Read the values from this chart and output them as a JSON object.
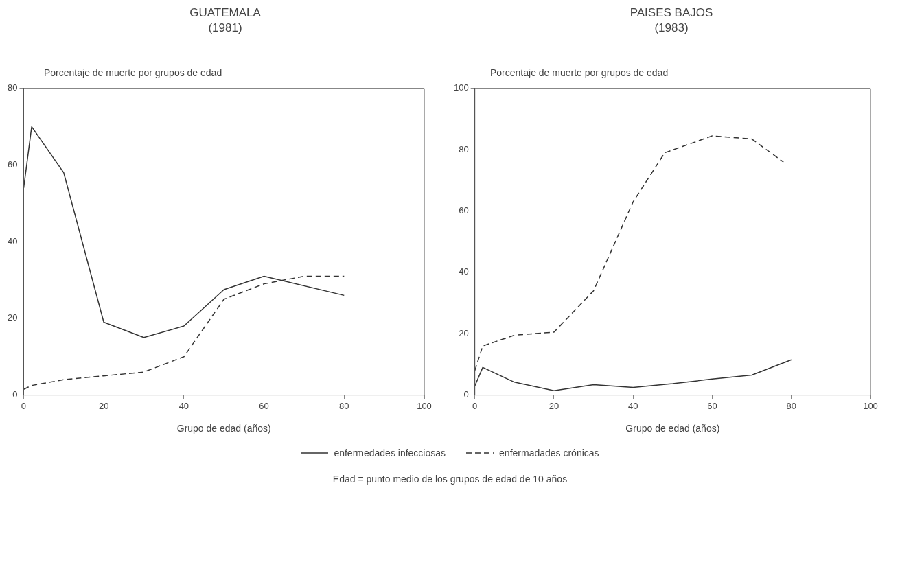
{
  "chart_data": [
    {
      "type": "line",
      "title": "GUATEMALA",
      "subtitle": "(1981)",
      "ylabel": "Porcentaje de muerte por grupos de edad",
      "xlabel": "Grupo de edad (años)",
      "xlim": [
        0,
        100
      ],
      "xticks": [
        0,
        20,
        40,
        60,
        80,
        100
      ],
      "ylim": [
        0,
        80
      ],
      "yticks": [
        0,
        20,
        40,
        60,
        80
      ],
      "grid": false,
      "legend": "bottom",
      "marker": "none",
      "annotations": [
        "Edad = punto medio de los grupos de edad de 10 años"
      ],
      "series": [
        {
          "name": "enfermedades infecciosas",
          "color": "#333333",
          "line_style": "solid",
          "x": [
            0,
            2,
            10,
            20,
            30,
            40,
            50,
            60,
            80
          ],
          "values": [
            54,
            70,
            58,
            19,
            15,
            18,
            27.5,
            31,
            26
          ]
        },
        {
          "name": "enfermadades crónicas",
          "color": "#333333",
          "line_style": "dashed",
          "x": [
            0,
            2,
            10,
            20,
            30,
            40,
            50,
            60,
            70,
            80
          ],
          "values": [
            1.5,
            2.5,
            4,
            5,
            6,
            10,
            25,
            29,
            31,
            31
          ]
        }
      ]
    },
    {
      "type": "line",
      "title": "PAISES BAJOS",
      "subtitle": "(1983)",
      "ylabel": "Porcentaje de muerte por grupos de edad",
      "xlabel": "Grupo de edad (años)",
      "xlim": [
        0,
        100
      ],
      "xticks": [
        0,
        20,
        40,
        60,
        80,
        100
      ],
      "ylim": [
        0,
        100
      ],
      "yticks": [
        0,
        20,
        40,
        60,
        80,
        100
      ],
      "grid": false,
      "marker": "none",
      "series": [
        {
          "color": "#333333",
          "line_style": "solid",
          "x": [
            0,
            2,
            10,
            20,
            30,
            40,
            50,
            60,
            70,
            80
          ],
          "values": [
            3,
            9,
            4.2,
            1.4,
            3.4,
            2.5,
            3.7,
            5.2,
            6.5,
            11.5
          ]
        },
        {
          "color": "#333333",
          "line_style": "dashed",
          "x": [
            0,
            2,
            10,
            20,
            30,
            40,
            48,
            60,
            70,
            78
          ],
          "values": [
            8,
            16,
            19.5,
            20.5,
            34,
            63,
            79,
            84.5,
            83.5,
            76
          ]
        }
      ]
    }
  ]
}
